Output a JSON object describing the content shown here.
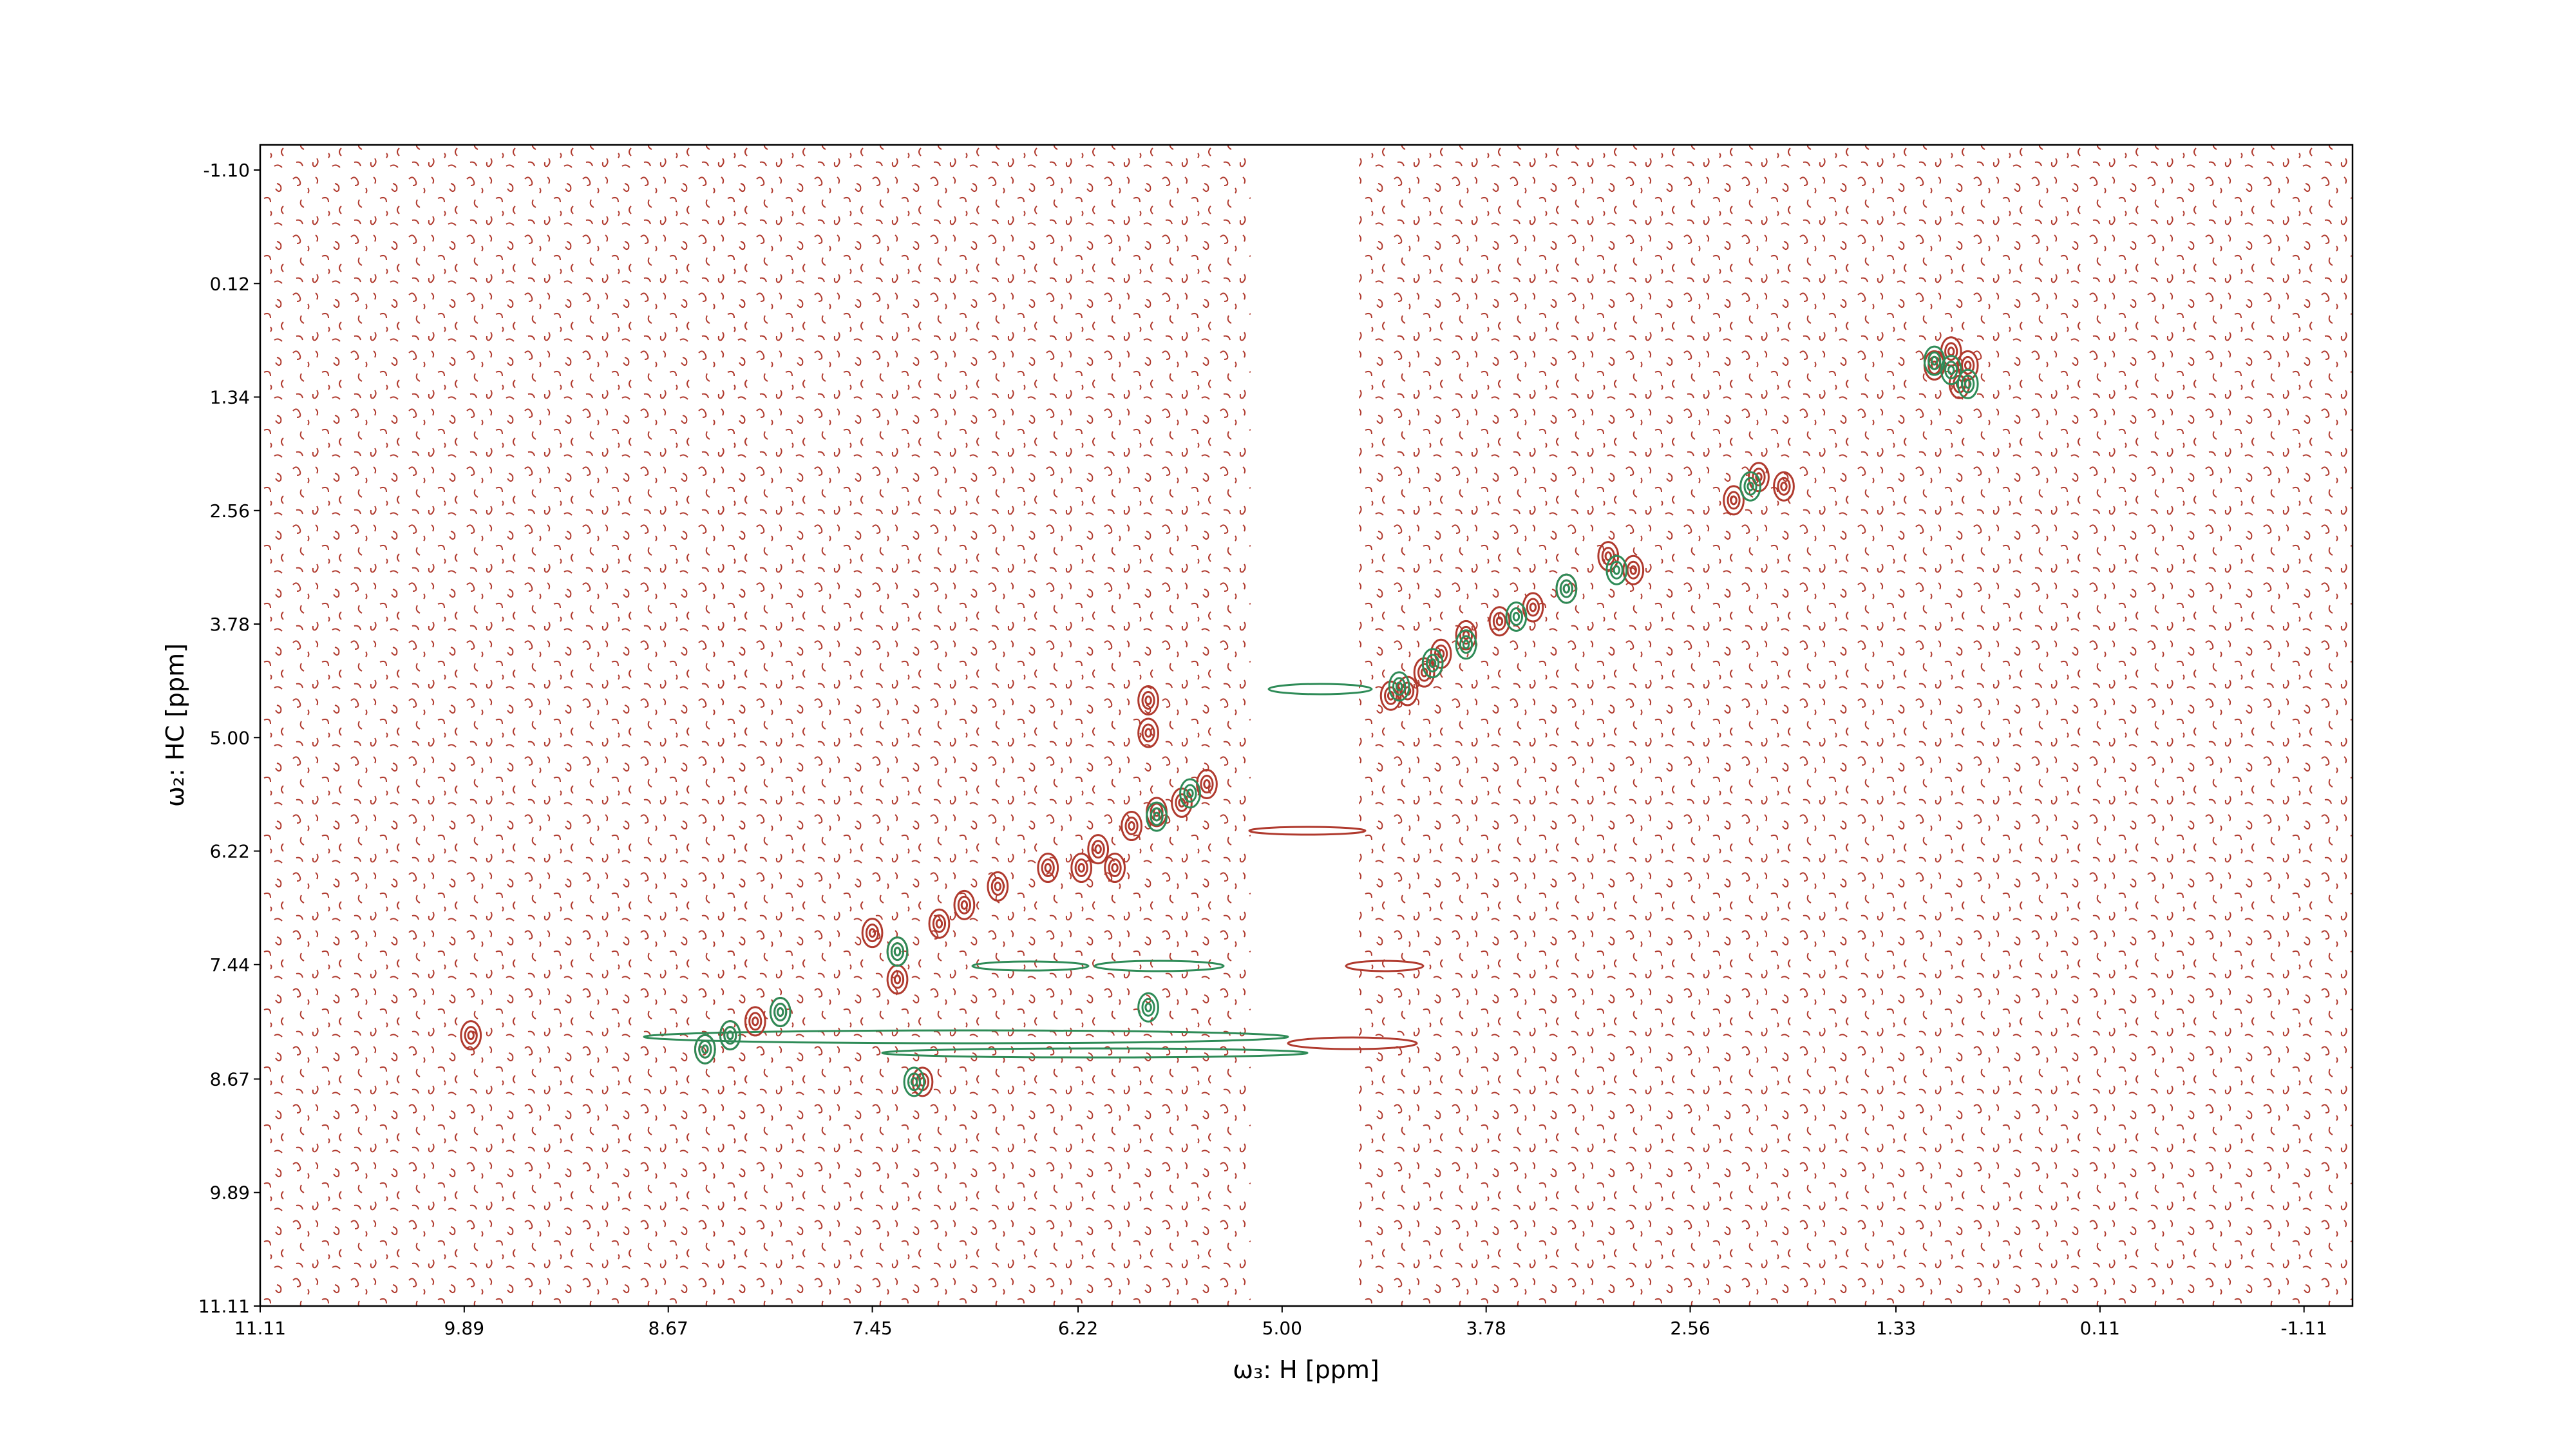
{
  "chart_data": {
    "type": "contour",
    "xlabel": "ω₃: H [ppm]",
    "ylabel": "ω₂: HC [ppm]",
    "xlim": [
      11.11,
      -1.4
    ],
    "ylim": [
      11.11,
      -1.37
    ],
    "xticks": [
      11.11,
      9.89,
      8.67,
      7.45,
      6.22,
      {
        "value": 5,
        "label": "5.00"
      },
      3.78,
      2.56,
      1.33,
      0.11,
      -1.11
    ],
    "yticks": [
      {
        "value": -1.1,
        "label": "-1.10"
      },
      0.12,
      1.34,
      2.56,
      3.78,
      {
        "value": 5,
        "label": "5.00"
      },
      6.22,
      7.44,
      8.67,
      9.89,
      11.11
    ],
    "series": [
      {
        "color": "#b03a2e",
        "x": [
          0.9,
          1.0,
          1.1,
          0.95,
          2.0,
          2.15,
          2.3,
          2.9,
          3.05,
          3.3,
          3.5,
          3.7,
          3.9,
          4.05,
          4.15,
          4.25,
          4.35,
          5.45,
          5.6,
          5.75,
          5.9,
          6.1,
          6.4,
          6.7,
          6.9,
          7.05,
          7.3,
          7.3,
          7.45,
          8.0,
          8.15,
          8.3,
          8.45,
          9.85,
          6.0,
          6.2,
          5.8,
          5.8,
          7.15
        ],
        "values": [
          1.0,
          0.85,
          1.0,
          1.2,
          2.3,
          2.2,
          2.45,
          3.2,
          3.05,
          3.4,
          3.6,
          3.75,
          3.9,
          4.1,
          4.3,
          4.5,
          4.55,
          5.5,
          5.7,
          5.8,
          5.95,
          6.2,
          6.4,
          6.6,
          6.8,
          7.0,
          7.3,
          7.6,
          7.1,
          7.95,
          8.05,
          8.2,
          8.35,
          8.2,
          6.4,
          6.4,
          4.95,
          4.6,
          8.7
        ]
      },
      {
        "color": "#2e8b57",
        "x": [
          1.0,
          1.1,
          0.9,
          2.2,
          3.0,
          3.3,
          3.6,
          3.9,
          4.1,
          4.3,
          5.55,
          5.75,
          7.3,
          8.0,
          8.3,
          8.45,
          5.8,
          7.2
        ],
        "values": [
          1.05,
          0.95,
          1.2,
          2.3,
          3.2,
          3.4,
          3.7,
          4.0,
          4.2,
          4.45,
          5.6,
          5.85,
          7.3,
          7.95,
          8.2,
          8.35,
          7.9,
          8.7
        ]
      }
    ]
  }
}
